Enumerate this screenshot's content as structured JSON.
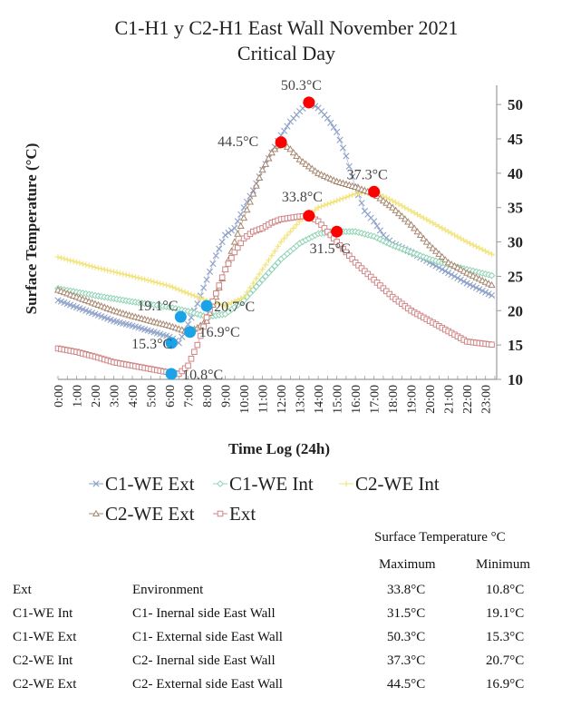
{
  "chart_data": {
    "type": "line",
    "title": "C1-H1 y C2-H1 East Wall November 2021",
    "subtitle": "Critical Day",
    "xlabel": "Time Log (24h)",
    "ylabel": "Surface Temperature (°C)",
    "ylim": [
      10,
      52
    ],
    "yticks": [
      10,
      15,
      20,
      25,
      30,
      35,
      40,
      45,
      50
    ],
    "y_axis_side": "right",
    "x_ticks": [
      "0:00",
      "1:00",
      "2:00",
      "3:00",
      "4:00",
      "5:00",
      "6:00",
      "7:00",
      "8:00",
      "9:00",
      "10:00",
      "11:00",
      "12:00",
      "13:00",
      "14:00",
      "15:00",
      "16:00",
      "17:00",
      "18:00",
      "19:00",
      "20:00",
      "21:00",
      "22:00",
      "23:00"
    ],
    "legend_position": "bottom",
    "series": [
      {
        "name": "C1-WE Ext",
        "color": "#8ea1c8",
        "marker": "x",
        "x": [
          0,
          1,
          2,
          3,
          4,
          5,
          6,
          6.5,
          7,
          7.5,
          8,
          8.5,
          9,
          9.5,
          10,
          10.5,
          11,
          11.5,
          12,
          12.5,
          13,
          13.5,
          14,
          14.5,
          15,
          15.5,
          16,
          16.5,
          17,
          17.5,
          18,
          19,
          20,
          21,
          22,
          23.5
        ],
        "y": [
          21.5,
          20.5,
          19.5,
          18.5,
          17.8,
          17,
          16.2,
          15.3,
          18,
          21,
          24.5,
          28,
          31,
          32,
          35,
          37.5,
          40.5,
          43,
          45.5,
          47.5,
          49,
          50.3,
          49.5,
          48,
          46,
          42.5,
          38,
          34.5,
          33,
          31,
          29.8,
          28.5,
          27,
          25.5,
          24,
          22
        ]
      },
      {
        "name": "C1-WE Int",
        "color": "#8fd4b4",
        "marker": "diamond",
        "x": [
          0,
          2,
          4,
          6,
          7,
          8,
          9,
          10,
          11,
          12,
          13,
          14,
          15,
          16,
          17,
          18,
          19,
          20,
          21,
          22,
          23.5
        ],
        "y": [
          23.2,
          22.2,
          21.3,
          20.5,
          19.9,
          19.1,
          19.5,
          21.5,
          24.5,
          27.5,
          29.8,
          31.2,
          31.5,
          31.5,
          30.8,
          29.5,
          28.5,
          27.5,
          26.7,
          26,
          25
        ]
      },
      {
        "name": "C2-WE Int",
        "color": "#f2e37a",
        "marker": "plus",
        "x": [
          0,
          2,
          4,
          6,
          7,
          8,
          9,
          10,
          11,
          12,
          13,
          14,
          15,
          16,
          17,
          18,
          19,
          20,
          21,
          22,
          23.5
        ],
        "y": [
          27.8,
          26.3,
          25,
          23.6,
          22.5,
          21.5,
          20.7,
          22,
          26,
          30,
          33,
          35,
          36,
          37,
          37.3,
          36,
          34.5,
          33,
          31.5,
          30,
          28
        ]
      },
      {
        "name": "C2-WE Ext",
        "color": "#a8876f",
        "marker": "triangle",
        "x": [
          0,
          1,
          2,
          3,
          4,
          5,
          6,
          7,
          7.5,
          8,
          8.5,
          9,
          9.5,
          10,
          10.5,
          11,
          11.5,
          12,
          12.5,
          13,
          13.5,
          14,
          15,
          16,
          17,
          18,
          19,
          20,
          21,
          22,
          23.5
        ],
        "y": [
          23,
          22,
          21,
          20,
          19.2,
          18.5,
          17.8,
          16.9,
          17.5,
          18.5,
          22,
          26,
          30,
          33.5,
          37,
          40.5,
          43,
          44.5,
          43.5,
          42,
          41,
          40,
          38.8,
          38,
          37,
          35,
          32.5,
          29.5,
          27,
          25.5,
          23.5
        ]
      },
      {
        "name": "Ext",
        "color": "#d08585",
        "marker": "square",
        "x": [
          0,
          1,
          2,
          3,
          4,
          5,
          6,
          6.5,
          7,
          7.5,
          8,
          8.5,
          9,
          9.5,
          10,
          10.5,
          11,
          11.5,
          12,
          12.5,
          13,
          13.5,
          14,
          15,
          16,
          17,
          18,
          19,
          20,
          21,
          22,
          23.5
        ],
        "y": [
          14.5,
          14,
          13.3,
          12.5,
          12,
          11.5,
          11,
          10.8,
          12,
          15,
          19,
          22.5,
          26,
          28.5,
          30.5,
          31.5,
          32,
          32.8,
          33.3,
          33.5,
          33.7,
          33.8,
          33,
          30,
          27,
          24.5,
          22,
          20,
          18.5,
          17,
          15.5,
          15
        ]
      }
    ],
    "annotations": [
      {
        "label": "50.3°C",
        "x": 13.5,
        "y": 50.3,
        "color": "#ff0000"
      },
      {
        "label": "44.5°C",
        "x": 12,
        "y": 44.5,
        "color": "#ff0000"
      },
      {
        "label": "37.3°C",
        "x": 17,
        "y": 37.3,
        "color": "#ff0000"
      },
      {
        "label": "33.8°C",
        "x": 13.5,
        "y": 33.8,
        "color": "#ff0000"
      },
      {
        "label": "31.5°C",
        "x": 15,
        "y": 31.5,
        "color": "#ff0000"
      },
      {
        "label": "19.1°C",
        "x": 6.6,
        "y": 19.1,
        "color": "#1aa3e8"
      },
      {
        "label": "20.7°C",
        "x": 8,
        "y": 20.7,
        "color": "#1aa3e8"
      },
      {
        "label": "15.3°C",
        "x": 6.1,
        "y": 15.3,
        "color": "#1aa3e8"
      },
      {
        "label": "16.9°C",
        "x": 7.1,
        "y": 16.9,
        "color": "#1aa3e8"
      },
      {
        "label": "10.8°C",
        "x": 6.1,
        "y": 10.8,
        "color": "#1aa3e8"
      }
    ]
  },
  "table": {
    "group_header": "Surface Temperature °C",
    "col_max": "Maximum",
    "col_min": "Minimum",
    "rows": [
      {
        "code": "Ext",
        "desc": "Environment",
        "max": "33.8°C",
        "min": "10.8°C"
      },
      {
        "code": "C1-WE Int",
        "desc": "C1- Inernal side East Wall",
        "max": "31.5°C",
        "min": "19.1°C"
      },
      {
        "code": "C1-WE Ext",
        "desc": "C1- External side East Wall",
        "max": "50.3°C",
        "min": "15.3°C"
      },
      {
        "code": "C2-WE Int",
        "desc": "C2- Inernal side East Wall",
        "max": "37.3°C",
        "min": "20.7°C"
      },
      {
        "code": "C2-WE Ext",
        "desc": "C2- External side East Wall",
        "max": "44.5°C",
        "min": "16.9°C"
      }
    ]
  }
}
